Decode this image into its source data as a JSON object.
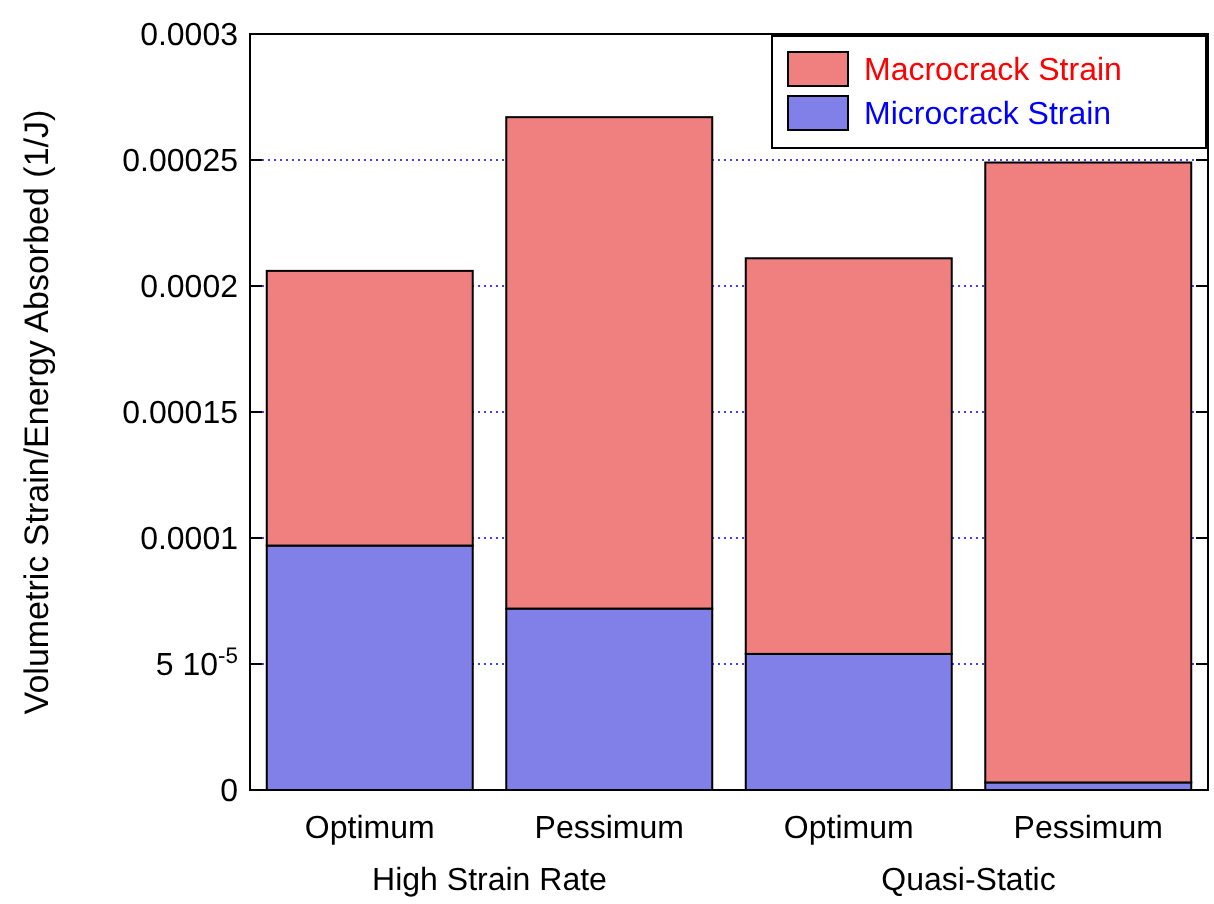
{
  "chart_data": {
    "type": "bar",
    "stacked": true,
    "ylabel": "Volumetric Strain/Energy Absorbed (1/J)",
    "categories": [
      "Optimum",
      "Pessimum",
      "Optimum",
      "Pessimum"
    ],
    "series": [
      {
        "name": "Microcrack Strain",
        "color": "#8080e8",
        "values": [
          9.7e-05,
          7.2e-05,
          5.4e-05,
          3e-06
        ]
      },
      {
        "name": "Macrocrack Strain",
        "color": "#f08080",
        "values": [
          0.000109,
          0.000195,
          0.000157,
          0.000246
        ]
      }
    ],
    "ylim": [
      0,
      0.0003
    ],
    "yticks": [
      0,
      {
        "value": 5e-05,
        "label": "5 10$^{-5}$"
      },
      0.0001,
      0.00015,
      0.0002,
      0.00025,
      0.0003
    ],
    "annotations": [
      "High Strain Rate",
      "Quasi-Static"
    ],
    "grid": "y",
    "legend": "top right"
  }
}
